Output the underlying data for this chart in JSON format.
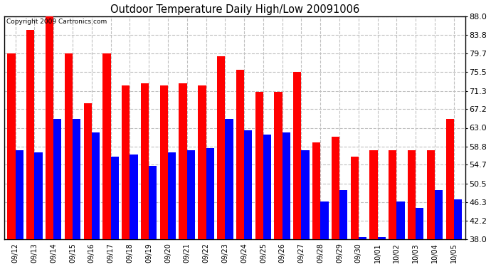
{
  "title": "Outdoor Temperature Daily High/Low 20091006",
  "copyright": "Copyright 2009 Cartronics.com",
  "dates": [
    "09/12",
    "09/13",
    "09/14",
    "09/15",
    "09/16",
    "09/17",
    "09/18",
    "09/19",
    "09/20",
    "09/21",
    "09/22",
    "09/23",
    "09/24",
    "09/25",
    "09/26",
    "09/27",
    "09/28",
    "09/29",
    "09/30",
    "10/01",
    "10/02",
    "10/03",
    "10/04",
    "10/05"
  ],
  "highs": [
    79.7,
    85.0,
    88.0,
    79.7,
    68.5,
    79.7,
    72.5,
    73.0,
    72.5,
    73.0,
    72.5,
    79.0,
    76.0,
    71.0,
    71.0,
    75.5,
    59.7,
    61.0,
    56.5,
    58.0,
    58.0,
    58.0,
    58.0,
    65.0
  ],
  "lows": [
    58.0,
    57.5,
    65.0,
    65.0,
    62.0,
    56.5,
    57.0,
    54.5,
    57.5,
    58.0,
    58.5,
    65.0,
    62.5,
    61.5,
    62.0,
    58.0,
    46.5,
    49.0,
    38.5,
    38.5,
    46.5,
    45.0,
    49.0,
    47.0
  ],
  "high_color": "#ff0000",
  "low_color": "#0000ff",
  "bg_color": "#ffffff",
  "grid_color": "#c0c0c0",
  "yticks": [
    38.0,
    42.2,
    46.3,
    50.5,
    54.7,
    58.8,
    63.0,
    67.2,
    71.3,
    75.5,
    79.7,
    83.8,
    88.0
  ],
  "ymin": 38.0,
  "ymax": 88.0,
  "bar_width": 0.42
}
